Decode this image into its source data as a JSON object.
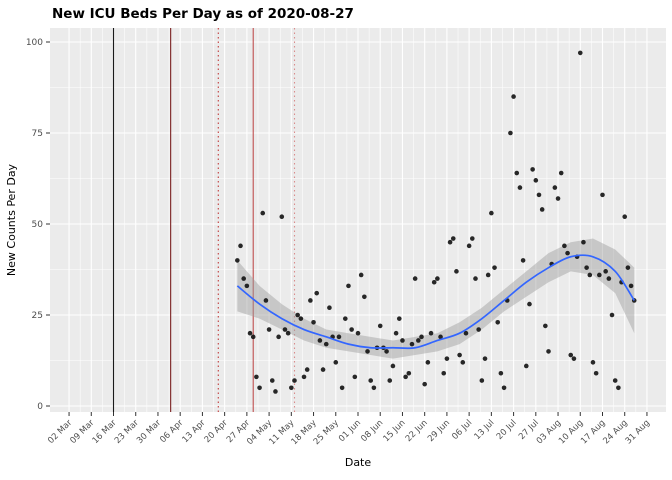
{
  "chart_data": {
    "type": "scatter",
    "title": "New ICU Beds Per Day as of 2020-08-27",
    "xlabel": "Date",
    "ylabel": "New Counts Per Day",
    "ylim": [
      0,
      100
    ],
    "y_ticks": [
      0,
      25,
      50,
      75,
      100
    ],
    "x_domain": [
      "2020-02-25",
      "2020-09-06"
    ],
    "x_ticks": [
      {
        "date": "2020-03-02",
        "label": "02 Mar"
      },
      {
        "date": "2020-03-09",
        "label": "09 Mar"
      },
      {
        "date": "2020-03-16",
        "label": "16 Mar"
      },
      {
        "date": "2020-03-23",
        "label": "23 Mar"
      },
      {
        "date": "2020-03-30",
        "label": "30 Mar"
      },
      {
        "date": "2020-04-06",
        "label": "06 Apr"
      },
      {
        "date": "2020-04-13",
        "label": "13 Apr"
      },
      {
        "date": "2020-04-20",
        "label": "20 Apr"
      },
      {
        "date": "2020-04-27",
        "label": "27 Apr"
      },
      {
        "date": "2020-05-04",
        "label": "04 May"
      },
      {
        "date": "2020-05-11",
        "label": "11 May"
      },
      {
        "date": "2020-05-18",
        "label": "18 May"
      },
      {
        "date": "2020-05-25",
        "label": "25 May"
      },
      {
        "date": "2020-06-01",
        "label": "01 Jun"
      },
      {
        "date": "2020-06-08",
        "label": "08 Jun"
      },
      {
        "date": "2020-06-15",
        "label": "15 Jun"
      },
      {
        "date": "2020-06-22",
        "label": "22 Jun"
      },
      {
        "date": "2020-06-29",
        "label": "29 Jun"
      },
      {
        "date": "2020-07-06",
        "label": "06 Jul"
      },
      {
        "date": "2020-07-13",
        "label": "13 Jul"
      },
      {
        "date": "2020-07-20",
        "label": "20 Jul"
      },
      {
        "date": "2020-07-27",
        "label": "27 Jul"
      },
      {
        "date": "2020-08-03",
        "label": "03 Aug"
      },
      {
        "date": "2020-08-10",
        "label": "10 Aug"
      },
      {
        "date": "2020-08-17",
        "label": "17 Aug"
      },
      {
        "date": "2020-08-24",
        "label": "24 Aug"
      },
      {
        "date": "2020-08-31",
        "label": "31 Aug"
      }
    ],
    "grid": true,
    "legend": "none",
    "panel_bg": "#EBEBEB",
    "grid_color": "#FFFFFF",
    "point_color": "#161616",
    "smooth_color": "#3366FF",
    "ribbon_color": "#9B9B9B",
    "ribbon_opacity": 0.45,
    "tick_label_color": "#4D4D4D",
    "vlines": [
      {
        "date": "2020-03-16",
        "color": "#1a1a1a",
        "style": "solid"
      },
      {
        "date": "2020-04-03",
        "color": "#7a1f1f",
        "style": "solid"
      },
      {
        "date": "2020-04-18",
        "color": "#c23b3b",
        "style": "dotted"
      },
      {
        "date": "2020-04-29",
        "color": "#c05050",
        "style": "solid"
      },
      {
        "date": "2020-05-12",
        "color": "#d98c8c",
        "style": "dotted"
      }
    ],
    "points": [
      [
        "2020-04-24",
        40
      ],
      [
        "2020-04-25",
        44
      ],
      [
        "2020-04-26",
        35
      ],
      [
        "2020-04-27",
        33
      ],
      [
        "2020-04-28",
        20
      ],
      [
        "2020-04-29",
        19
      ],
      [
        "2020-04-30",
        8
      ],
      [
        "2020-05-01",
        5
      ],
      [
        "2020-05-02",
        53
      ],
      [
        "2020-05-03",
        29
      ],
      [
        "2020-05-04",
        21
      ],
      [
        "2020-05-05",
        7
      ],
      [
        "2020-05-06",
        4
      ],
      [
        "2020-05-07",
        19
      ],
      [
        "2020-05-08",
        52
      ],
      [
        "2020-05-09",
        21
      ],
      [
        "2020-05-10",
        20
      ],
      [
        "2020-05-11",
        5
      ],
      [
        "2020-05-12",
        7
      ],
      [
        "2020-05-13",
        25
      ],
      [
        "2020-05-14",
        24
      ],
      [
        "2020-05-15",
        8
      ],
      [
        "2020-05-16",
        10
      ],
      [
        "2020-05-17",
        29
      ],
      [
        "2020-05-18",
        23
      ],
      [
        "2020-05-19",
        31
      ],
      [
        "2020-05-20",
        18
      ],
      [
        "2020-05-21",
        10
      ],
      [
        "2020-05-22",
        17
      ],
      [
        "2020-05-23",
        27
      ],
      [
        "2020-05-24",
        19
      ],
      [
        "2020-05-25",
        12
      ],
      [
        "2020-05-26",
        19
      ],
      [
        "2020-05-27",
        5
      ],
      [
        "2020-05-28",
        24
      ],
      [
        "2020-05-29",
        33
      ],
      [
        "2020-05-30",
        21
      ],
      [
        "2020-05-31",
        8
      ],
      [
        "2020-06-01",
        20
      ],
      [
        "2020-06-02",
        36
      ],
      [
        "2020-06-03",
        30
      ],
      [
        "2020-06-04",
        15
      ],
      [
        "2020-06-05",
        7
      ],
      [
        "2020-06-06",
        5
      ],
      [
        "2020-06-07",
        16
      ],
      [
        "2020-06-08",
        22
      ],
      [
        "2020-06-09",
        16
      ],
      [
        "2020-06-10",
        15
      ],
      [
        "2020-06-11",
        7
      ],
      [
        "2020-06-12",
        11
      ],
      [
        "2020-06-13",
        20
      ],
      [
        "2020-06-14",
        24
      ],
      [
        "2020-06-15",
        18
      ],
      [
        "2020-06-16",
        8
      ],
      [
        "2020-06-17",
        9
      ],
      [
        "2020-06-18",
        17
      ],
      [
        "2020-06-19",
        35
      ],
      [
        "2020-06-20",
        18
      ],
      [
        "2020-06-21",
        19
      ],
      [
        "2020-06-22",
        6
      ],
      [
        "2020-06-23",
        12
      ],
      [
        "2020-06-24",
        20
      ],
      [
        "2020-06-25",
        34
      ],
      [
        "2020-06-26",
        35
      ],
      [
        "2020-06-27",
        19
      ],
      [
        "2020-06-28",
        9
      ],
      [
        "2020-06-29",
        13
      ],
      [
        "2020-06-30",
        45
      ],
      [
        "2020-07-01",
        46
      ],
      [
        "2020-07-02",
        37
      ],
      [
        "2020-07-03",
        14
      ],
      [
        "2020-07-04",
        12
      ],
      [
        "2020-07-05",
        20
      ],
      [
        "2020-07-06",
        44
      ],
      [
        "2020-07-07",
        46
      ],
      [
        "2020-07-08",
        35
      ],
      [
        "2020-07-09",
        21
      ],
      [
        "2020-07-10",
        7
      ],
      [
        "2020-07-11",
        13
      ],
      [
        "2020-07-12",
        36
      ],
      [
        "2020-07-13",
        53
      ],
      [
        "2020-07-14",
        38
      ],
      [
        "2020-07-15",
        23
      ],
      [
        "2020-07-16",
        9
      ],
      [
        "2020-07-17",
        5
      ],
      [
        "2020-07-18",
        29
      ],
      [
        "2020-07-19",
        75
      ],
      [
        "2020-07-20",
        85
      ],
      [
        "2020-07-21",
        64
      ],
      [
        "2020-07-22",
        60
      ],
      [
        "2020-07-23",
        40
      ],
      [
        "2020-07-24",
        11
      ],
      [
        "2020-07-25",
        28
      ],
      [
        "2020-07-26",
        65
      ],
      [
        "2020-07-27",
        62
      ],
      [
        "2020-07-28",
        58
      ],
      [
        "2020-07-29",
        54
      ],
      [
        "2020-07-30",
        22
      ],
      [
        "2020-07-31",
        15
      ],
      [
        "2020-08-01",
        39
      ],
      [
        "2020-08-02",
        60
      ],
      [
        "2020-08-03",
        57
      ],
      [
        "2020-08-04",
        64
      ],
      [
        "2020-08-05",
        44
      ],
      [
        "2020-08-06",
        42
      ],
      [
        "2020-08-07",
        14
      ],
      [
        "2020-08-08",
        13
      ],
      [
        "2020-08-09",
        41
      ],
      [
        "2020-08-10",
        97
      ],
      [
        "2020-08-11",
        45
      ],
      [
        "2020-08-12",
        38
      ],
      [
        "2020-08-13",
        36
      ],
      [
        "2020-08-14",
        12
      ],
      [
        "2020-08-15",
        9
      ],
      [
        "2020-08-16",
        36
      ],
      [
        "2020-08-17",
        58
      ],
      [
        "2020-08-18",
        37
      ],
      [
        "2020-08-19",
        35
      ],
      [
        "2020-08-20",
        25
      ],
      [
        "2020-08-21",
        7
      ],
      [
        "2020-08-22",
        5
      ],
      [
        "2020-08-23",
        34
      ],
      [
        "2020-08-24",
        52
      ],
      [
        "2020-08-25",
        38
      ],
      [
        "2020-08-26",
        33
      ],
      [
        "2020-08-27",
        29
      ]
    ],
    "smooth": [
      [
        "2020-04-24",
        33,
        26,
        40
      ],
      [
        "2020-05-01",
        28,
        24,
        33
      ],
      [
        "2020-05-08",
        24,
        21,
        28
      ],
      [
        "2020-05-15",
        21,
        18,
        24
      ],
      [
        "2020-05-22",
        19,
        16,
        21
      ],
      [
        "2020-05-29",
        17,
        15,
        20
      ],
      [
        "2020-06-05",
        16,
        14,
        19
      ],
      [
        "2020-06-12",
        16,
        13,
        18
      ],
      [
        "2020-06-19",
        16,
        14,
        19
      ],
      [
        "2020-06-26",
        18,
        15,
        20
      ],
      [
        "2020-07-03",
        20,
        17,
        23
      ],
      [
        "2020-07-10",
        24,
        21,
        27
      ],
      [
        "2020-07-17",
        29,
        26,
        32
      ],
      [
        "2020-07-24",
        34,
        30,
        37
      ],
      [
        "2020-07-31",
        38,
        34,
        42
      ],
      [
        "2020-08-07",
        41,
        37,
        45
      ],
      [
        "2020-08-14",
        41,
        36,
        46
      ],
      [
        "2020-08-21",
        37,
        31,
        43
      ],
      [
        "2020-08-27",
        29,
        20,
        38
      ]
    ]
  }
}
